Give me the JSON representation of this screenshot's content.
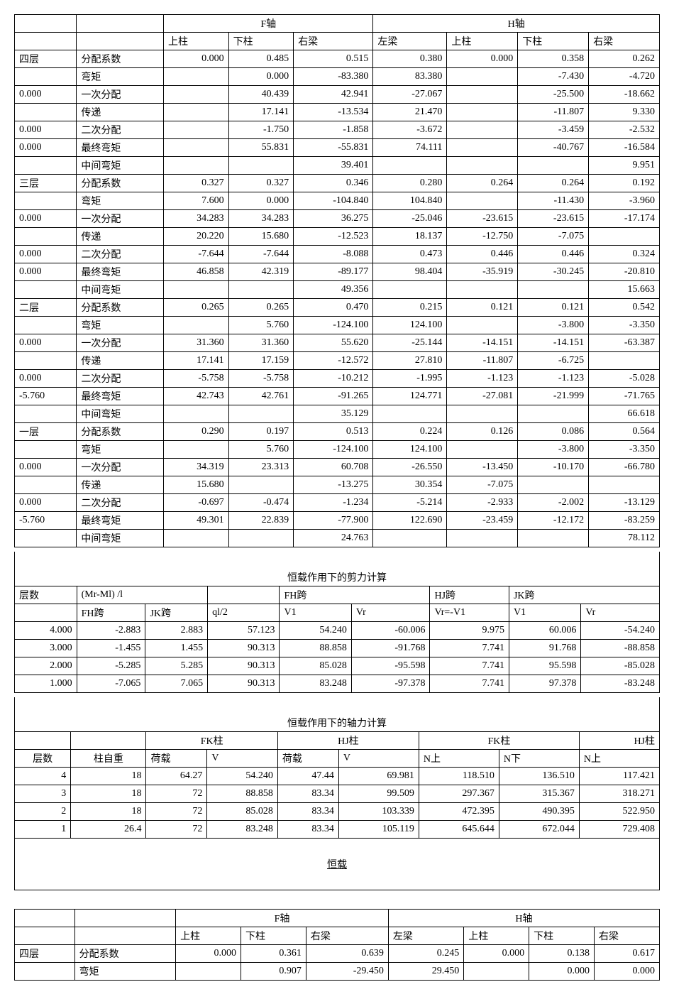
{
  "table1": {
    "header_f": "F轴",
    "header_h": "H轴",
    "cols": [
      "上柱",
      "下柱",
      "右梁",
      "左梁",
      "上柱",
      "下柱",
      "右梁"
    ],
    "groups": [
      {
        "name": "四层",
        "left_nums": [
          "",
          "0.000",
          "",
          "0.000",
          "0.000",
          ""
        ],
        "labels": [
          "分配系数",
          "弯矩",
          "一次分配",
          "传递",
          "二次分配",
          "最终弯矩",
          "中间弯矩"
        ],
        "rows": [
          [
            "0.000",
            "0.485",
            "0.515",
            "0.380",
            "0.000",
            "0.358",
            "0.262"
          ],
          [
            "",
            "0.000",
            "-83.380",
            "83.380",
            "",
            "-7.430",
            "-4.720"
          ],
          [
            "",
            "40.439",
            "42.941",
            "-27.067",
            "",
            "-25.500",
            "-18.662"
          ],
          [
            "",
            "17.141",
            "-13.534",
            "21.470",
            "",
            "-11.807",
            "9.330"
          ],
          [
            "",
            "-1.750",
            "-1.858",
            "-3.672",
            "",
            "-3.459",
            "-2.532"
          ],
          [
            "",
            "55.831",
            "-55.831",
            "74.111",
            "",
            "-40.767",
            "-16.584"
          ],
          [
            "",
            "",
            "39.401",
            "",
            "",
            "",
            "9.951"
          ]
        ]
      },
      {
        "name": "三层",
        "left_nums": [
          "",
          "0.000",
          "",
          "0.000",
          "0.000",
          ""
        ],
        "labels": [
          "分配系数",
          "弯矩",
          "一次分配",
          "传递",
          "二次分配",
          "最终弯矩",
          "中间弯矩"
        ],
        "rows": [
          [
            "0.327",
            "0.327",
            "0.346",
            "0.280",
            "0.264",
            "0.264",
            "0.192"
          ],
          [
            "7.600",
            "0.000",
            "-104.840",
            "104.840",
            "",
            "-11.430",
            "-3.960"
          ],
          [
            "34.283",
            "34.283",
            "36.275",
            "-25.046",
            "-23.615",
            "-23.615",
            "-17.174"
          ],
          [
            "20.220",
            "15.680",
            "-12.523",
            "18.137",
            "-12.750",
            "-7.075",
            ""
          ],
          [
            "-7.644",
            "-7.644",
            "-8.088",
            "0.473",
            "0.446",
            "0.446",
            "0.324"
          ],
          [
            "46.858",
            "42.319",
            "-89.177",
            "98.404",
            "-35.919",
            "-30.245",
            "-20.810"
          ],
          [
            "",
            "",
            "49.356",
            "",
            "",
            "",
            "15.663"
          ]
        ]
      },
      {
        "name": "二层",
        "left_nums": [
          "",
          "0.000",
          "",
          "0.000",
          "-5.760",
          ""
        ],
        "labels": [
          "分配系数",
          "弯矩",
          "一次分配",
          "传递",
          "二次分配",
          "最终弯矩",
          "中间弯矩"
        ],
        "rows": [
          [
            "0.265",
            "0.265",
            "0.470",
            "0.215",
            "0.121",
            "0.121",
            "0.542"
          ],
          [
            "",
            "5.760",
            "-124.100",
            "124.100",
            "",
            "-3.800",
            "-3.350"
          ],
          [
            "31.360",
            "31.360",
            "55.620",
            "-25.144",
            "-14.151",
            "-14.151",
            "-63.387"
          ],
          [
            "17.141",
            "17.159",
            "-12.572",
            "27.810",
            "-11.807",
            "-6.725",
            ""
          ],
          [
            "-5.758",
            "-5.758",
            "-10.212",
            "-1.995",
            "-1.123",
            "-1.123",
            "-5.028"
          ],
          [
            "42.743",
            "42.761",
            "-91.265",
            "124.771",
            "-27.081",
            "-21.999",
            "-71.765"
          ],
          [
            "",
            "",
            "35.129",
            "",
            "",
            "",
            "66.618"
          ]
        ]
      },
      {
        "name": "一层",
        "left_nums": [
          "",
          "0.000",
          "",
          "0.000",
          "-5.760",
          ""
        ],
        "labels": [
          "分配系数",
          "弯矩",
          "一次分配",
          "传递",
          "二次分配",
          "最终弯矩",
          "中间弯矩"
        ],
        "rows": [
          [
            "0.290",
            "0.197",
            "0.513",
            "0.224",
            "0.126",
            "0.086",
            "0.564"
          ],
          [
            "",
            "5.760",
            "-124.100",
            "124.100",
            "",
            "-3.800",
            "-3.350"
          ],
          [
            "34.319",
            "23.313",
            "60.708",
            "-26.550",
            "-13.450",
            "-10.170",
            "-66.780"
          ],
          [
            "15.680",
            "",
            "-13.275",
            "30.354",
            "-7.075",
            "",
            ""
          ],
          [
            "-0.697",
            "-0.474",
            "-1.234",
            "-5.214",
            "-2.933",
            "-2.002",
            "-13.129"
          ],
          [
            "49.301",
            "22.839",
            "-77.900",
            "122.690",
            "-23.459",
            "-12.172",
            "-83.259"
          ],
          [
            "",
            "",
            "24.763",
            "",
            "",
            "",
            "78.112"
          ]
        ]
      }
    ]
  },
  "shear": {
    "title": "恒载作用下的剪力计算",
    "h_layer": "层数",
    "h_mr": "(Mr-Ml) /l",
    "h_fh": "FH跨",
    "h_hj": "HJ跨",
    "h_jk": "JK跨",
    "sub": [
      "FH跨",
      "JK跨",
      "ql/2",
      "V1",
      "Vr",
      "Vr=-V1",
      "V1",
      "Vr"
    ],
    "rows": [
      [
        "4.000",
        "-2.883",
        "2.883",
        "57.123",
        "54.240",
        "-60.006",
        "9.975",
        "60.006",
        "-54.240"
      ],
      [
        "3.000",
        "-1.455",
        "1.455",
        "90.313",
        "88.858",
        "-91.768",
        "7.741",
        "91.768",
        "-88.858"
      ],
      [
        "2.000",
        "-5.285",
        "5.285",
        "90.313",
        "85.028",
        "-95.598",
        "7.741",
        "95.598",
        "-85.028"
      ],
      [
        "1.000",
        "-7.065",
        "7.065",
        "90.313",
        "83.248",
        "-97.378",
        "7.741",
        "97.378",
        "-83.248"
      ]
    ]
  },
  "axial": {
    "title": "恒载作用下的轴力计算",
    "h_fk1": "FK柱",
    "h_hj": "HJ柱",
    "h_fk2": "FK柱",
    "h_hj2": "HJ柱",
    "h_layer": "层数",
    "h_selfw": "柱自重",
    "h_load": "荷载",
    "h_v": "V",
    "h_nup": "N上",
    "h_ndown": "N下",
    "rows": [
      [
        "4",
        "18",
        "64.27",
        "54.240",
        "47.44",
        "69.981",
        "118.510",
        "136.510",
        "117.421"
      ],
      [
        "3",
        "18",
        "72",
        "88.858",
        "83.34",
        "99.509",
        "297.367",
        "315.367",
        "318.271"
      ],
      [
        "2",
        "18",
        "72",
        "85.028",
        "83.34",
        "103.339",
        "472.395",
        "490.395",
        "522.950"
      ],
      [
        "1",
        "26.4",
        "72",
        "83.248",
        "83.34",
        "105.119",
        "645.644",
        "672.044",
        "729.408"
      ]
    ],
    "footer": "恒载"
  },
  "table4": {
    "header_f": "F轴",
    "header_h": "H轴",
    "cols": [
      "上柱",
      "下柱",
      "右梁",
      "左梁",
      "上柱",
      "下柱",
      "右梁"
    ],
    "name": "四层",
    "labels": [
      "分配系数",
      "弯矩"
    ],
    "rows": [
      [
        "0.000",
        "0.361",
        "0.639",
        "0.245",
        "0.000",
        "0.138",
        "0.617"
      ],
      [
        "",
        "0.907",
        "-29.450",
        "29.450",
        "",
        "0.000",
        "0.000"
      ]
    ]
  }
}
